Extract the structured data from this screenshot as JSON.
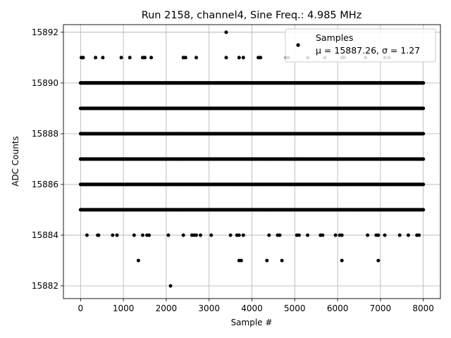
{
  "chart_data": {
    "type": "scatter",
    "title": "Run 2158, channel4, Sine Freq.: 4.985 MHz",
    "xlabel": "Sample #",
    "ylabel": "ADC Counts",
    "xlim": [
      -400,
      8400
    ],
    "ylim": [
      15881.5,
      15892.3
    ],
    "xticks": [
      0,
      1000,
      2000,
      3000,
      4000,
      5000,
      6000,
      7000,
      8000
    ],
    "yticks": [
      15882,
      15884,
      15886,
      15888,
      15890,
      15892
    ],
    "grid": true,
    "legend_position": "top-right",
    "series": [
      {
        "name": "Samples",
        "stats_label": "μ = 15887.26, σ = 1.27",
        "color": "#000000",
        "dense_levels": [
          15885,
          15886,
          15887,
          15888,
          15889,
          15890
        ],
        "x_range": [
          0,
          8000
        ],
        "sparse_points": {
          "15891": [
            20,
            60,
            350,
            520,
            950,
            1150,
            1450,
            1500,
            1650,
            2400,
            2450,
            2700,
            3400,
            3700,
            3800,
            4150,
            4200,
            4800,
            4850,
            5300,
            5700,
            6100,
            6150,
            6650,
            7100,
            7200
          ],
          "15884": [
            150,
            400,
            420,
            750,
            850,
            1250,
            1450,
            1550,
            1600,
            2050,
            2400,
            2600,
            2650,
            2700,
            2800,
            3050,
            3500,
            3650,
            3700,
            3800,
            4400,
            4600,
            4650,
            5050,
            5100,
            5300,
            5600,
            5650,
            5950,
            6050,
            6100,
            6700,
            6900,
            6950,
            7100,
            7450,
            7650,
            7850,
            7900
          ],
          "15883": [
            1350,
            3700,
            3750,
            4350,
            4700,
            6100,
            6950
          ],
          "15892": [
            3400
          ],
          "15882": [
            2100
          ]
        }
      }
    ]
  }
}
